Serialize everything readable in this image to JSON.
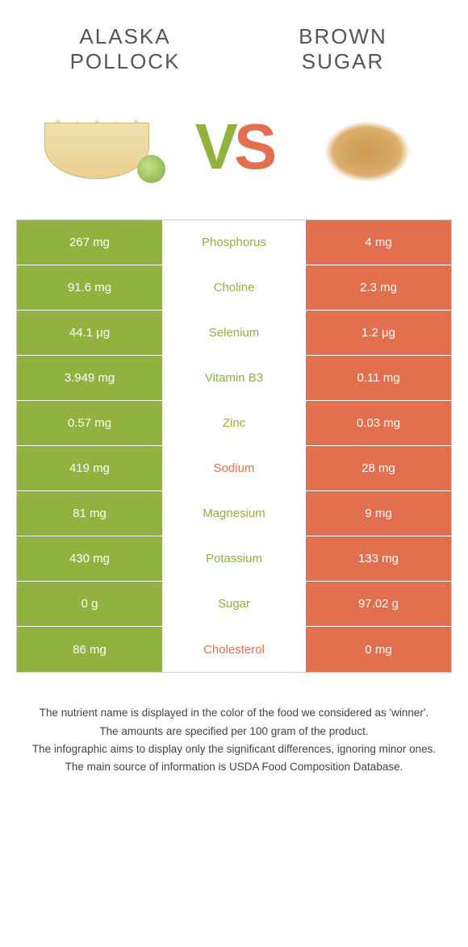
{
  "left_food": {
    "title": "ALASKA POLLOCK"
  },
  "right_food": {
    "title": "BROWN SUGAR"
  },
  "colors": {
    "green": "#91b23e",
    "orange": "#e2704f",
    "white": "#ffffff"
  },
  "rows": [
    {
      "left": "267 mg",
      "nutrient": "Phosphorus",
      "right": "4 mg",
      "winner": "left"
    },
    {
      "left": "91.6 mg",
      "nutrient": "Choline",
      "right": "2.3 mg",
      "winner": "left"
    },
    {
      "left": "44.1 µg",
      "nutrient": "Selenium",
      "right": "1.2 µg",
      "winner": "left"
    },
    {
      "left": "3.949 mg",
      "nutrient": "Vitamin B3",
      "right": "0.11 mg",
      "winner": "left"
    },
    {
      "left": "0.57 mg",
      "nutrient": "Zinc",
      "right": "0.03 mg",
      "winner": "left"
    },
    {
      "left": "419 mg",
      "nutrient": "Sodium",
      "right": "28 mg",
      "winner": "right"
    },
    {
      "left": "81 mg",
      "nutrient": "Magnesium",
      "right": "9 mg",
      "winner": "left"
    },
    {
      "left": "430 mg",
      "nutrient": "Potassium",
      "right": "133 mg",
      "winner": "left"
    },
    {
      "left": "0 g",
      "nutrient": "Sugar",
      "right": "97.02 g",
      "winner": "left"
    },
    {
      "left": "86 mg",
      "nutrient": "Cholesterol",
      "right": "0 mg",
      "winner": "right"
    }
  ],
  "footer": [
    "The nutrient name is displayed in the color of the food we considered as 'winner'.",
    "The amounts are specified per 100 gram of the product.",
    "The infographic aims to display only the significant differences, ignoring minor ones.",
    "The main source of information is USDA Food Composition Database."
  ]
}
